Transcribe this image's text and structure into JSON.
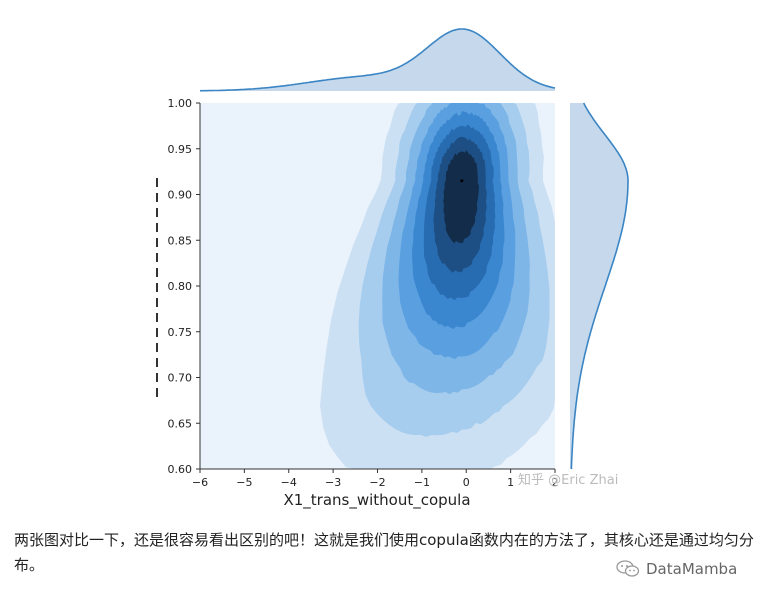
{
  "chart_data": {
    "type": "kde-jointplot",
    "xlabel": "X1_trans_without_copula",
    "ylabel": "",
    "xlim": [
      -6,
      2
    ],
    "ylim": [
      0.6,
      1.0
    ],
    "xticks": [
      "−6",
      "−5",
      "−4",
      "−3",
      "−2",
      "−1",
      "0",
      "1",
      "2"
    ],
    "yticks": [
      "0.60",
      "0.65",
      "0.70",
      "0.75",
      "0.80",
      "0.85",
      "0.90",
      "0.95",
      "1.00"
    ],
    "density_peak": {
      "x": -0.1,
      "y": 0.915
    },
    "contour_levels": 8,
    "colors": {
      "background": "#eaf3fb",
      "levels": [
        "#cce0f4",
        "#a6cdee",
        "#7fb6e8",
        "#5aa0e0",
        "#3b87cf",
        "#276bb0",
        "#1d4f84",
        "#122c4a"
      ],
      "marginal_fill": "#c6d9ec",
      "marginal_line": "#3b85c4"
    },
    "watermark": "知乎 @Eric Zhai"
  },
  "caption": "两张图对比一下，还是很容易看出区别的吧！这就是我们使用copula函数内在的方法了，其核心还是通过均匀分布。",
  "brand": "DataMamba",
  "brand_icon": "wechat-icon"
}
